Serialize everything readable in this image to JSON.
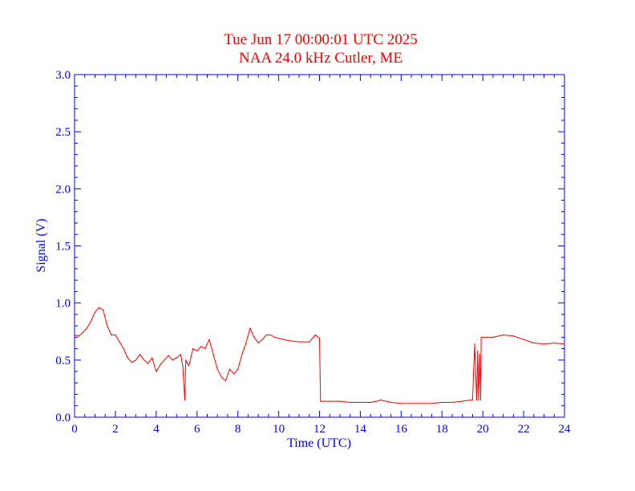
{
  "chart_data": {
    "type": "line",
    "title": "Tue Jun 17 00:00:01 UTC 2025",
    "subtitle": "NAA 24.0 kHz Cutler, ME",
    "xlabel": "Time (UTC)",
    "ylabel": "Signal (V)",
    "xlim": [
      0,
      24
    ],
    "ylim": [
      0,
      3.0
    ],
    "x_ticks": [
      0,
      2,
      4,
      6,
      8,
      10,
      12,
      14,
      16,
      18,
      20,
      22,
      24
    ],
    "x_tick_labels": [
      "0",
      "2",
      "4",
      "6",
      "8",
      "10",
      "12",
      "14",
      "16",
      "18",
      "20",
      "22",
      "24"
    ],
    "y_ticks": [
      0,
      0.5,
      1.0,
      1.5,
      2.0,
      2.5,
      3.0
    ],
    "y_tick_labels": [
      "0.0",
      "0.5",
      "1.0",
      "1.5",
      "2.0",
      "2.5",
      "3.0"
    ],
    "grid": false,
    "colors": {
      "title": "#ff0000",
      "axes": "#0000ff",
      "line": "#ff0000"
    },
    "series": [
      {
        "x": [
          0.0,
          0.2,
          0.4,
          0.6,
          0.8,
          1.0,
          1.2,
          1.4,
          1.6,
          1.8,
          2.0,
          2.2,
          2.4,
          2.6,
          2.8,
          3.0,
          3.2,
          3.4,
          3.6,
          3.8,
          4.0,
          4.2,
          4.4,
          4.6,
          4.8,
          5.0,
          5.2,
          5.3,
          5.4,
          5.45,
          5.5,
          5.6,
          5.8,
          6.0,
          6.2,
          6.4,
          6.6,
          6.8,
          7.0,
          7.2,
          7.4,
          7.6,
          7.8,
          8.0,
          8.2,
          8.4,
          8.6,
          8.8,
          9.0,
          9.2,
          9.4,
          9.6,
          9.8,
          10.0,
          10.5,
          11.0,
          11.5,
          11.8,
          12.0,
          12.05,
          12.2,
          12.5,
          13.0,
          13.5,
          14.0,
          14.5,
          14.8,
          15.0,
          15.5,
          16.0,
          16.5,
          17.0,
          17.5,
          18.0,
          18.5,
          19.0,
          19.4,
          19.5,
          19.6,
          19.7,
          19.75,
          19.8,
          19.85,
          19.9,
          19.92,
          20.0,
          20.2,
          20.5,
          21.0,
          21.5,
          22.0,
          22.5,
          23.0,
          23.5,
          24.0
        ],
        "values": [
          0.72,
          0.71,
          0.74,
          0.78,
          0.84,
          0.92,
          0.96,
          0.94,
          0.8,
          0.72,
          0.72,
          0.66,
          0.6,
          0.52,
          0.48,
          0.5,
          0.55,
          0.5,
          0.47,
          0.52,
          0.4,
          0.46,
          0.5,
          0.54,
          0.5,
          0.52,
          0.55,
          0.45,
          0.15,
          0.5,
          0.48,
          0.45,
          0.6,
          0.58,
          0.62,
          0.6,
          0.68,
          0.55,
          0.42,
          0.35,
          0.32,
          0.42,
          0.38,
          0.42,
          0.55,
          0.65,
          0.78,
          0.7,
          0.65,
          0.68,
          0.72,
          0.72,
          0.7,
          0.69,
          0.67,
          0.66,
          0.66,
          0.72,
          0.69,
          0.14,
          0.14,
          0.14,
          0.14,
          0.13,
          0.13,
          0.13,
          0.14,
          0.15,
          0.13,
          0.12,
          0.12,
          0.12,
          0.12,
          0.13,
          0.13,
          0.14,
          0.15,
          0.15,
          0.64,
          0.15,
          0.58,
          0.15,
          0.55,
          0.15,
          0.7,
          0.7,
          0.7,
          0.7,
          0.72,
          0.71,
          0.68,
          0.65,
          0.64,
          0.65,
          0.64
        ]
      }
    ]
  }
}
